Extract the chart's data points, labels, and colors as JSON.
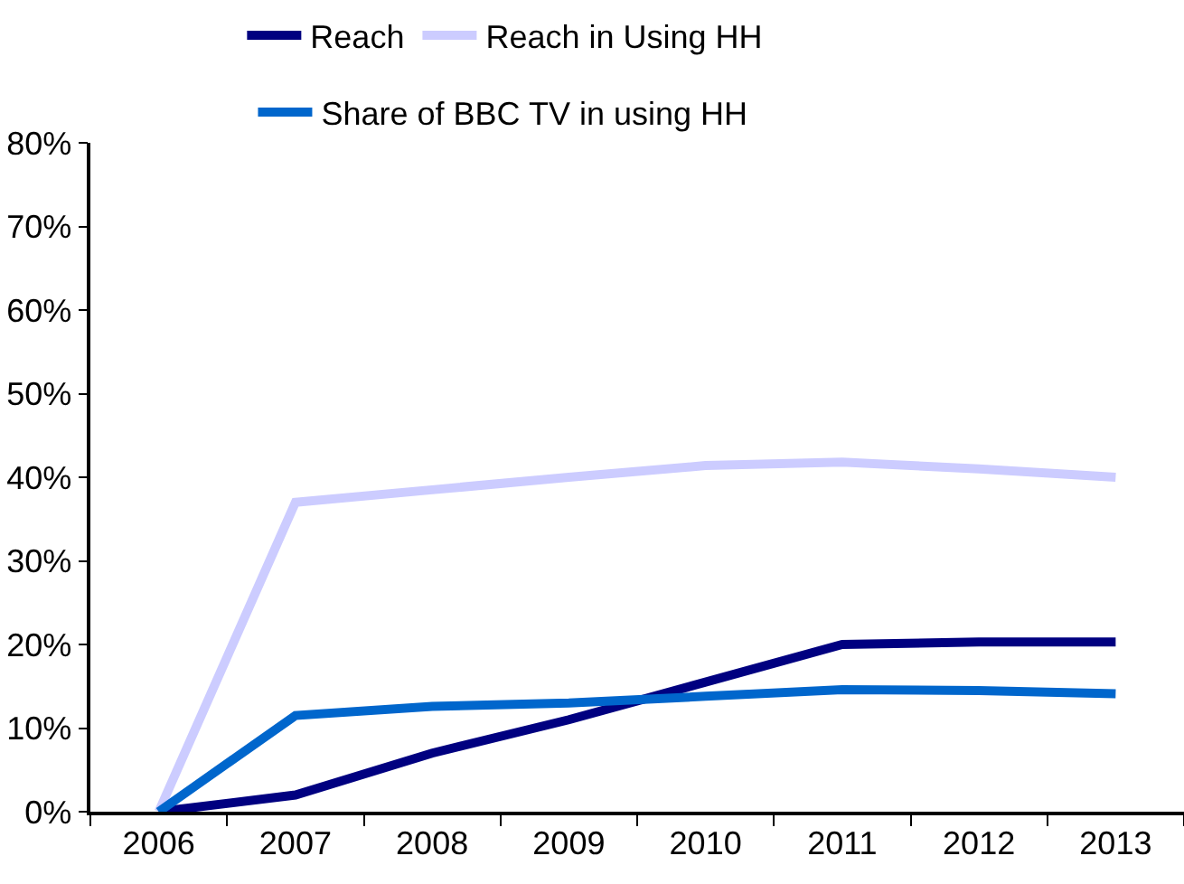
{
  "chart_data": {
    "type": "line",
    "categories": [
      "2006",
      "2007",
      "2008",
      "2009",
      "2010",
      "2011",
      "2012",
      "2013"
    ],
    "series": [
      {
        "name": "Reach",
        "color": "#000080",
        "values": [
          0,
          2,
          7,
          11,
          15.5,
          20,
          20.3,
          20.3
        ]
      },
      {
        "name": "Reach in Using HH",
        "color": "#ccccff",
        "values": [
          0,
          37,
          38.5,
          40,
          41.4,
          41.8,
          41,
          40
        ]
      },
      {
        "name": "Share of BBC TV in using HH",
        "color": "#0066cc",
        "values": [
          0,
          11.5,
          12.6,
          13,
          13.8,
          14.6,
          14.5,
          14.1
        ]
      }
    ],
    "ylim": [
      0,
      80
    ],
    "yticks": [
      {
        "value": 0,
        "label": "0%"
      },
      {
        "value": 10,
        "label": "10%"
      },
      {
        "value": 20,
        "label": "20%"
      },
      {
        "value": 30,
        "label": "30%"
      },
      {
        "value": 40,
        "label": "40%"
      },
      {
        "value": 50,
        "label": "50%"
      },
      {
        "value": 60,
        "label": "60%"
      },
      {
        "value": 70,
        "label": "70%"
      },
      {
        "value": 80,
        "label": "80%"
      }
    ],
    "legend": "top",
    "grid": false,
    "marker": "none",
    "line_style": "solid"
  }
}
